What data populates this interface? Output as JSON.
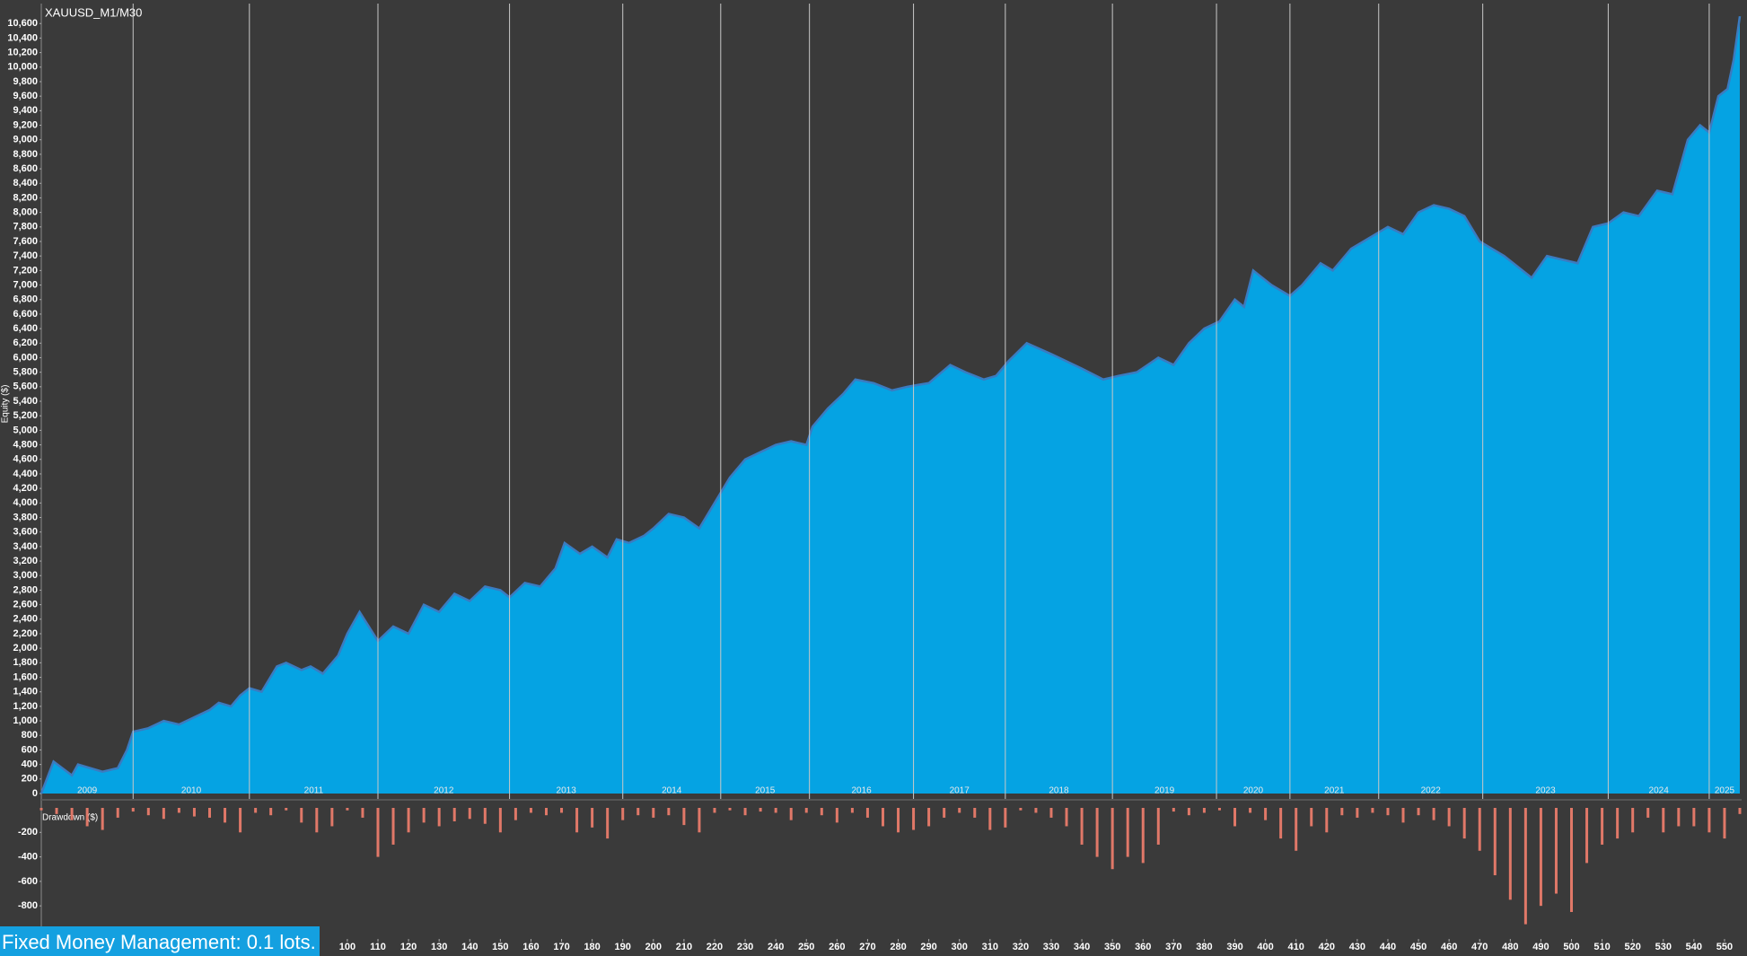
{
  "chart_data": [
    {
      "type": "area",
      "title": "XAUUSD_M1/M30",
      "ylabel": "Equity ($)",
      "color": "#05a3e3",
      "line_color": "#3b7bc0",
      "x": [
        0,
        4,
        10,
        12,
        20,
        25,
        28,
        30,
        35,
        40,
        45,
        50,
        55,
        58,
        62,
        65,
        68,
        72,
        77,
        80,
        85,
        88,
        92,
        97,
        100,
        104,
        110,
        115,
        120,
        125,
        130,
        135,
        140,
        145,
        150,
        153,
        158,
        163,
        168,
        171,
        176,
        180,
        185,
        188,
        192,
        197,
        200,
        205,
        210,
        215,
        220,
        225,
        230,
        235,
        240,
        245,
        250,
        252,
        257,
        262,
        266,
        272,
        278,
        283,
        290,
        297,
        302,
        308,
        312,
        316,
        322,
        330,
        340,
        347,
        352,
        358,
        365,
        370,
        375,
        380,
        385,
        390,
        393,
        396,
        402,
        408,
        412,
        418,
        422,
        428,
        434,
        440,
        445,
        450,
        455,
        460,
        465,
        470,
        478,
        487,
        492,
        497,
        502,
        507,
        512,
        517,
        522,
        528,
        533,
        538,
        542,
        545,
        548,
        551,
        553,
        555
      ],
      "values": [
        0,
        440,
        250,
        400,
        300,
        350,
        600,
        850,
        900,
        1000,
        950,
        1050,
        1150,
        1250,
        1200,
        1350,
        1450,
        1400,
        1750,
        1800,
        1700,
        1750,
        1650,
        1900,
        2200,
        2500,
        2100,
        2300,
        2200,
        2600,
        2500,
        2750,
        2650,
        2850,
        2800,
        2700,
        2900,
        2850,
        3100,
        3450,
        3300,
        3400,
        3250,
        3500,
        3450,
        3550,
        3650,
        3850,
        3800,
        3650,
        4000,
        4350,
        4600,
        4700,
        4800,
        4850,
        4800,
        5050,
        5300,
        5500,
        5700,
        5650,
        5550,
        5600,
        5650,
        5900,
        5800,
        5700,
        5750,
        5950,
        6200,
        6050,
        5850,
        5700,
        5750,
        5800,
        6000,
        5900,
        6200,
        6400,
        6500,
        6800,
        6700,
        7200,
        7000,
        6850,
        7000,
        7300,
        7200,
        7500,
        7650,
        7800,
        7700,
        8000,
        8100,
        8050,
        7950,
        7600,
        7400,
        7100,
        7400,
        7350,
        7300,
        7800,
        7850,
        8000,
        7950,
        8300,
        8250,
        9000,
        9200,
        9100,
        9600,
        9700,
        10100,
        10700
      ],
      "xlim": [
        0,
        555
      ],
      "ylim": [
        0,
        10850
      ],
      "yticks": [
        0,
        200,
        400,
        600,
        800,
        {
          "value": 1000,
          "label": "1,000"
        },
        {
          "value": 1200,
          "label": "1,200"
        },
        {
          "value": 1400,
          "label": "1,400"
        },
        {
          "value": 1600,
          "label": "1,600"
        },
        {
          "value": 1800,
          "label": "1,800"
        },
        {
          "value": 2000,
          "label": "2,000"
        },
        {
          "value": 2200,
          "label": "2,200"
        },
        {
          "value": 2400,
          "label": "2,400"
        },
        {
          "value": 2600,
          "label": "2,600"
        },
        {
          "value": 2800,
          "label": "2,800"
        },
        {
          "value": 3000,
          "label": "3,000"
        },
        {
          "value": 3200,
          "label": "3,200"
        },
        {
          "value": 3400,
          "label": "3,400"
        },
        {
          "value": 3600,
          "label": "3,600"
        },
        {
          "value": 3800,
          "label": "3,800"
        },
        {
          "value": 4000,
          "label": "4,000"
        },
        {
          "value": 4200,
          "label": "4,200"
        },
        {
          "value": 4400,
          "label": "4,400"
        },
        {
          "value": 4600,
          "label": "4,600"
        },
        {
          "value": 4800,
          "label": "4,800"
        },
        {
          "value": 5000,
          "label": "5,000"
        },
        {
          "value": 5200,
          "label": "5,200"
        },
        {
          "value": 5400,
          "label": "5,400"
        },
        {
          "value": 5600,
          "label": "5,600"
        },
        {
          "value": 5800,
          "label": "5,800"
        },
        {
          "value": 6000,
          "label": "6,000"
        },
        {
          "value": 6200,
          "label": "6,200"
        },
        {
          "value": 6400,
          "label": "6,400"
        },
        {
          "value": 6600,
          "label": "6,600"
        },
        {
          "value": 6800,
          "label": "6,800"
        },
        {
          "value": 7000,
          "label": "7,000"
        },
        {
          "value": 7200,
          "label": "7,200"
        },
        {
          "value": 7400,
          "label": "7,400"
        },
        {
          "value": 7600,
          "label": "7,600"
        },
        {
          "value": 7800,
          "label": "7,800"
        },
        {
          "value": 8000,
          "label": "8,000"
        },
        {
          "value": 8200,
          "label": "8,200"
        },
        {
          "value": 8400,
          "label": "8,400"
        },
        {
          "value": 8600,
          "label": "8,600"
        },
        {
          "value": 8800,
          "label": "8,800"
        },
        {
          "value": 9000,
          "label": "9,000"
        },
        {
          "value": 9200,
          "label": "9,200"
        },
        {
          "value": 9400,
          "label": "9,400"
        },
        {
          "value": 9600,
          "label": "9,600"
        },
        {
          "value": 9800,
          "label": "9,800"
        },
        {
          "value": 10000,
          "label": "10,000"
        },
        {
          "value": 10200,
          "label": "10,200"
        },
        {
          "value": 10400,
          "label": "10,400"
        },
        {
          "value": 10600,
          "label": "10,600"
        }
      ],
      "years": [
        "2009",
        "2010",
        "2011",
        "2012",
        "2013",
        "2014",
        "2015",
        "2016",
        "2017",
        "2018",
        "2019",
        "2020",
        "2021",
        "2022",
        "2023",
        "2024",
        "2025"
      ],
      "year_boundaries": [
        30,
        68,
        110,
        153,
        190,
        222,
        251,
        285,
        315,
        350,
        384,
        408,
        437,
        471,
        512,
        545
      ]
    },
    {
      "type": "bar",
      "ylabel": "Drawdown ($)",
      "color": "#e07868",
      "x": [
        0,
        5,
        10,
        15,
        20,
        25,
        30,
        35,
        40,
        45,
        50,
        55,
        60,
        65,
        70,
        75,
        80,
        85,
        90,
        95,
        100,
        105,
        110,
        115,
        120,
        125,
        130,
        135,
        140,
        145,
        150,
        155,
        160,
        165,
        170,
        175,
        180,
        185,
        190,
        195,
        200,
        205,
        210,
        215,
        220,
        225,
        230,
        235,
        240,
        245,
        250,
        255,
        260,
        265,
        270,
        275,
        280,
        285,
        290,
        295,
        300,
        305,
        310,
        315,
        320,
        325,
        330,
        335,
        340,
        345,
        350,
        355,
        360,
        365,
        370,
        375,
        380,
        385,
        390,
        395,
        400,
        405,
        410,
        415,
        420,
        425,
        430,
        435,
        440,
        445,
        450,
        455,
        460,
        465,
        470,
        475,
        480,
        485,
        490,
        495,
        500,
        505,
        510,
        515,
        520,
        525,
        530,
        535,
        540,
        545,
        550,
        555
      ],
      "values": [
        -20,
        -50,
        -100,
        -150,
        -180,
        -80,
        -30,
        -60,
        -90,
        -40,
        -70,
        -80,
        -120,
        -200,
        -40,
        -60,
        -20,
        -120,
        -200,
        -150,
        -20,
        -80,
        -400,
        -300,
        -200,
        -120,
        -150,
        -110,
        -90,
        -130,
        -200,
        -100,
        -40,
        -60,
        -40,
        -200,
        -160,
        -250,
        -100,
        -60,
        -80,
        -60,
        -140,
        -200,
        -40,
        -20,
        -60,
        -30,
        -40,
        -100,
        -40,
        -60,
        -120,
        -40,
        -80,
        -150,
        -200,
        -180,
        -150,
        -80,
        -40,
        -80,
        -180,
        -160,
        -20,
        -40,
        -80,
        -150,
        -300,
        -400,
        -500,
        -400,
        -450,
        -300,
        -30,
        -60,
        -40,
        -20,
        -150,
        -40,
        -100,
        -250,
        -350,
        -150,
        -200,
        -60,
        -80,
        -40,
        -60,
        -120,
        -60,
        -100,
        -150,
        -250,
        -350,
        -550,
        -750,
        -950,
        -800,
        -700,
        -850,
        -450,
        -300,
        -250,
        -200,
        -80,
        -200,
        -150,
        -150,
        -200,
        -250,
        -50
      ],
      "xlim": [
        0,
        555
      ],
      "ylim": [
        -1070,
        0
      ],
      "yticks": [
        -200,
        -400,
        -600,
        -800
      ],
      "xticks": [
        100,
        110,
        120,
        130,
        140,
        150,
        160,
        170,
        180,
        190,
        200,
        210,
        220,
        230,
        240,
        250,
        260,
        270,
        280,
        290,
        300,
        310,
        320,
        330,
        340,
        350,
        360,
        370,
        380,
        390,
        400,
        410,
        420,
        430,
        440,
        450,
        460,
        470,
        480,
        490,
        500,
        510,
        520,
        530,
        540,
        550
      ]
    }
  ],
  "annotation": "Fixed Money Management: 0.1 lots."
}
